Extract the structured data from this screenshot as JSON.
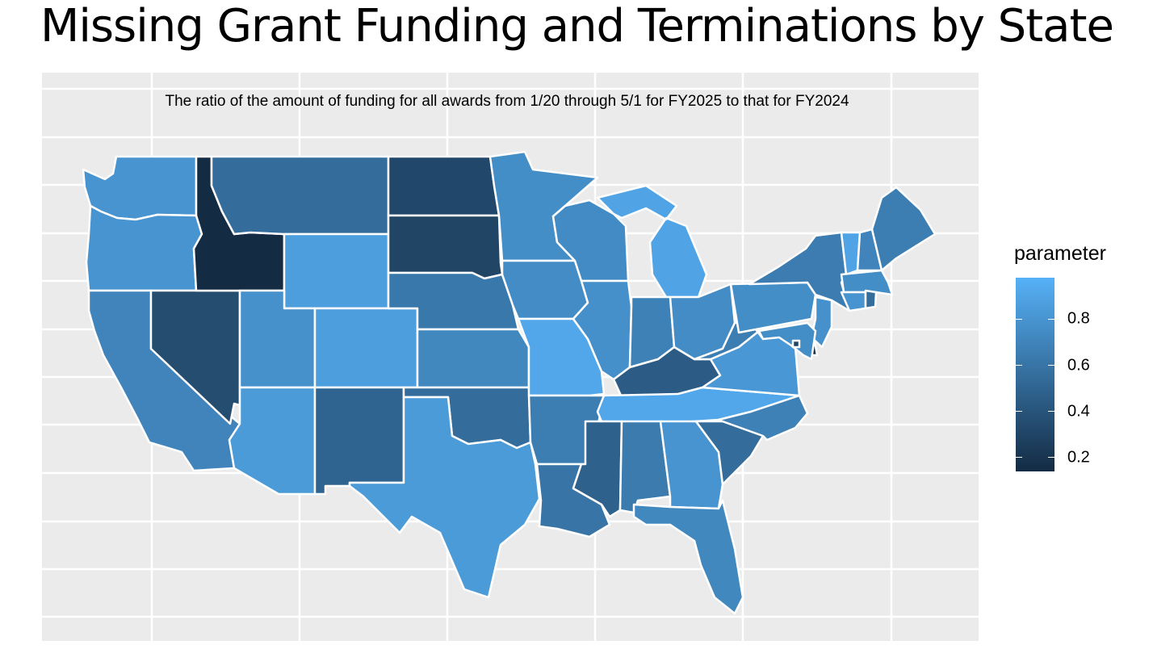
{
  "title": "Missing Grant Funding and Terminations by State",
  "subtitle": "The ratio of the amount of funding for all awards from 1/20 through 5/1 for FY2025 to that for FY2024",
  "legend": {
    "title": "parameter",
    "range": [
      0.14,
      0.98
    ],
    "ticks": [
      {
        "value": 0.2,
        "label": "0.2"
      },
      {
        "value": 0.4,
        "label": "0.4"
      },
      {
        "value": 0.6,
        "label": "0.6"
      },
      {
        "value": 0.8,
        "label": "0.8"
      }
    ],
    "low_color": "#132b43",
    "high_color": "#56b1f7"
  },
  "map": {
    "panel_background": "#ebebeb",
    "border_color": "#ffffff",
    "states": [
      {
        "name": "WA",
        "value": 0.8
      },
      {
        "name": "OR",
        "value": 0.8
      },
      {
        "name": "CA",
        "value": 0.7
      },
      {
        "name": "NV",
        "value": 0.35
      },
      {
        "name": "ID",
        "value": 0.14
      },
      {
        "name": "MT",
        "value": 0.55
      },
      {
        "name": "WY",
        "value": 0.86
      },
      {
        "name": "UT",
        "value": 0.78
      },
      {
        "name": "AZ",
        "value": 0.84
      },
      {
        "name": "CO",
        "value": 0.86
      },
      {
        "name": "NM",
        "value": 0.5
      },
      {
        "name": "ND",
        "value": 0.32
      },
      {
        "name": "SD",
        "value": 0.3
      },
      {
        "name": "NE",
        "value": 0.62
      },
      {
        "name": "KS",
        "value": 0.72
      },
      {
        "name": "OK",
        "value": 0.55
      },
      {
        "name": "TX",
        "value": 0.84
      },
      {
        "name": "MN",
        "value": 0.76
      },
      {
        "name": "IA",
        "value": 0.75
      },
      {
        "name": "MO",
        "value": 0.92
      },
      {
        "name": "AR",
        "value": 0.66
      },
      {
        "name": "LA",
        "value": 0.6
      },
      {
        "name": "WI",
        "value": 0.74
      },
      {
        "name": "IL",
        "value": 0.77
      },
      {
        "name": "MI",
        "value": 0.9
      },
      {
        "name": "IN",
        "value": 0.68
      },
      {
        "name": "OH",
        "value": 0.75
      },
      {
        "name": "KY",
        "value": 0.45
      },
      {
        "name": "TN",
        "value": 0.92
      },
      {
        "name": "MS",
        "value": 0.48
      },
      {
        "name": "AL",
        "value": 0.64
      },
      {
        "name": "GA",
        "value": 0.8
      },
      {
        "name": "FL",
        "value": 0.72
      },
      {
        "name": "SC",
        "value": 0.55
      },
      {
        "name": "NC",
        "value": 0.68
      },
      {
        "name": "VA",
        "value": 0.82
      },
      {
        "name": "WV",
        "value": 0.66
      },
      {
        "name": "PA",
        "value": 0.76
      },
      {
        "name": "NY",
        "value": 0.65
      },
      {
        "name": "VT",
        "value": 0.9
      },
      {
        "name": "NH",
        "value": 0.7
      },
      {
        "name": "ME",
        "value": 0.66
      },
      {
        "name": "MA",
        "value": 0.76
      },
      {
        "name": "CT",
        "value": 0.8
      },
      {
        "name": "RI",
        "value": 0.55
      },
      {
        "name": "NJ",
        "value": 0.78
      },
      {
        "name": "DE",
        "value": 0.2
      },
      {
        "name": "MD",
        "value": 0.76
      },
      {
        "name": "DC",
        "value": 0.3
      }
    ]
  }
}
